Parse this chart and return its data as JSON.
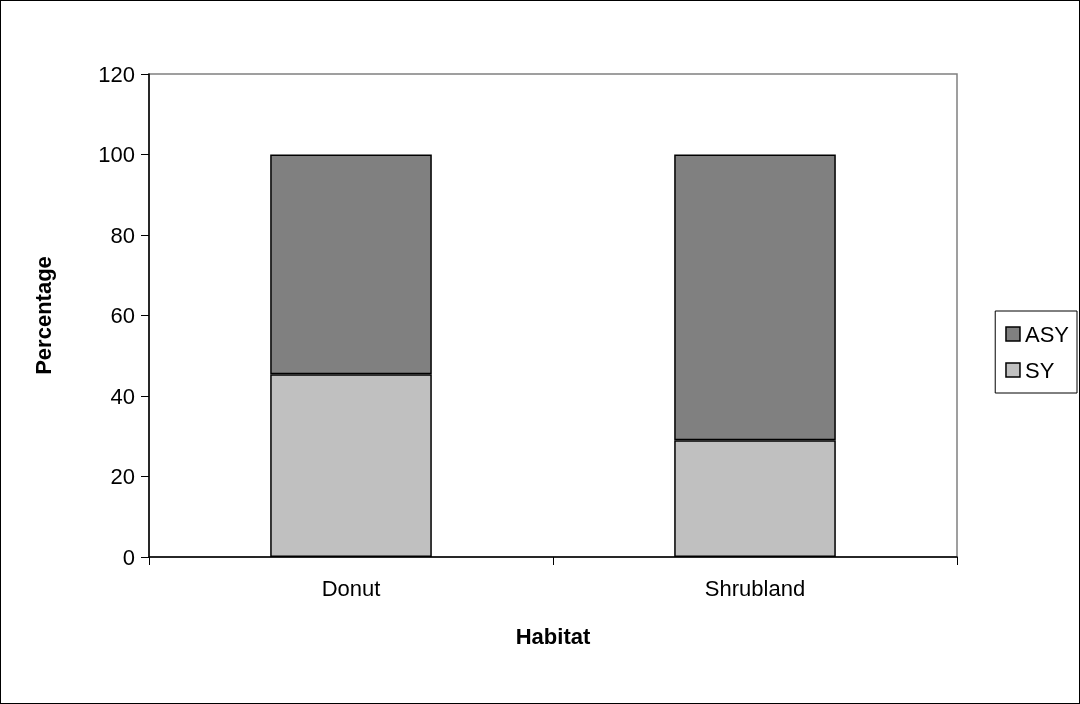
{
  "chart_data": {
    "type": "bar",
    "stacked": true,
    "xlabel": "Habitat",
    "ylabel": "Percentage",
    "categories": [
      "Donut",
      "Shrubland"
    ],
    "series": [
      {
        "name": "SY",
        "color": "#c0c0c0",
        "values": [
          45.4,
          29
        ]
      },
      {
        "name": "ASY",
        "color": "#808080",
        "values": [
          54.6,
          71
        ]
      }
    ],
    "ylim": [
      0,
      120
    ],
    "yticks": [
      0,
      20,
      40,
      60,
      80,
      100,
      120
    ],
    "grid": false,
    "legend": "right"
  }
}
